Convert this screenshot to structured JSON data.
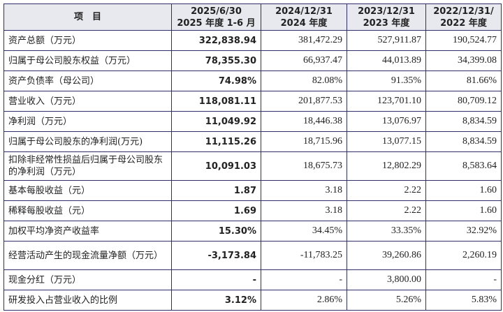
{
  "table": {
    "headers": [
      [
        "项　目"
      ],
      [
        "2025/6/30",
        "2025 年度 1-6 月"
      ],
      [
        "2024/12/31",
        "2024 年度"
      ],
      [
        "2023/12/31",
        "2023 年度"
      ],
      [
        "2022/12/31/",
        "2022 年度"
      ]
    ],
    "rows": [
      {
        "label": "资产总额（万元）",
        "values": [
          "322,838.94",
          "381,472.29",
          "527,911.87",
          "190,524.77"
        ]
      },
      {
        "label": "归属于母公司股东权益（万元）",
        "values": [
          "78,355.30",
          "66,937.47",
          "44,013.89",
          "34,399.08"
        ]
      },
      {
        "label": "资产负债率（母公司）",
        "values": [
          "74.98%",
          "82.08%",
          "91.35%",
          "81.66%"
        ]
      },
      {
        "label": "营业收入（万元）",
        "values": [
          "118,081.11",
          "201,877.53",
          "123,701.10",
          "80,709.12"
        ]
      },
      {
        "label": "净利润（万元）",
        "values": [
          "11,049.92",
          "18,446.38",
          "13,076.97",
          "8,834.59"
        ]
      },
      {
        "label": "归属于母公司股东的净利润(万元)",
        "values": [
          "11,115.26",
          "18,715.96",
          "13,077.15",
          "8,834.59"
        ]
      },
      {
        "label": "扣除非经常性损益后归属于母公司股东的净利润（万元）",
        "values": [
          "10,091.03",
          "18,675.73",
          "12,802.29",
          "8,583.64"
        ],
        "tall": true
      },
      {
        "label": "基本每股收益（元）",
        "values": [
          "1.87",
          "3.18",
          "2.22",
          "1.60"
        ]
      },
      {
        "label": "稀释每股收益（元）",
        "values": [
          "1.69",
          "3.18",
          "2.22",
          "1.60"
        ]
      },
      {
        "label": "加权平均净资产收益率",
        "values": [
          "15.30%",
          "34.45%",
          "33.35%",
          "32.92%"
        ]
      },
      {
        "label": "经营活动产生的现金流量净额（万元）",
        "values": [
          "-3,173.84",
          "-11,783.25",
          "39,260.86",
          "2,260.19"
        ],
        "tall": true
      },
      {
        "label": "现金分红（万元）",
        "values": [
          "-",
          "-",
          "3,800.00",
          "-"
        ]
      },
      {
        "label": "研发投入占营业收入的比例",
        "values": [
          "3.12%",
          "2.86%",
          "5.26%",
          "5.83%"
        ]
      }
    ]
  }
}
